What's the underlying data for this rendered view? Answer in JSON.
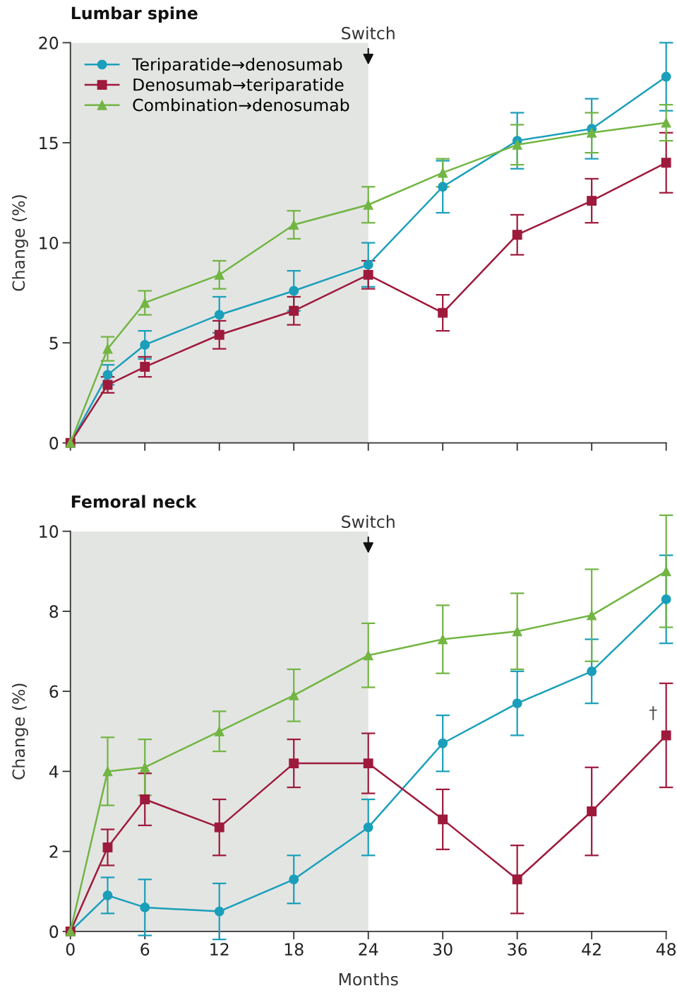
{
  "chart_data": [
    {
      "type": "line",
      "title": "Lumbar spine",
      "ylabel": "Change (%)",
      "x": [
        0,
        3,
        6,
        12,
        18,
        24,
        30,
        36,
        42,
        48
      ],
      "xlim": [
        0,
        48
      ],
      "xticks": [
        {
          "value": 0,
          "label": null
        },
        {
          "value": 6,
          "label": null
        },
        {
          "value": 12,
          "label": null
        },
        {
          "value": 18,
          "label": null
        },
        {
          "value": 24,
          "label": null
        },
        {
          "value": 30,
          "label": null
        },
        {
          "value": 36,
          "label": null
        },
        {
          "value": 42,
          "label": null
        },
        {
          "value": 48,
          "label": null
        }
      ],
      "ylim": [
        0,
        20
      ],
      "yticks": [
        0,
        5,
        10,
        15,
        20
      ],
      "tick_labels": "y",
      "legend": "top left",
      "grid": false,
      "line_style": "solid",
      "bands": [
        {
          "axis": "x",
          "from": 0,
          "to": 24,
          "color": "#e3e5e3"
        }
      ],
      "annotations": [
        "Switch"
      ],
      "series": [
        {
          "name": "Teriparatide→denosumab",
          "color": "#1a9fba",
          "marker": "circle",
          "values": [
            0,
            3.4,
            4.9,
            6.4,
            7.6,
            8.9,
            12.8,
            15.1,
            15.7,
            18.3
          ],
          "errors": [
            null,
            0.5,
            0.7,
            0.9,
            1.0,
            1.1,
            1.3,
            1.4,
            1.5,
            1.7
          ]
        },
        {
          "name": "Denosumab→teriparatide",
          "color": "#9e1a3c",
          "marker": "square",
          "values": [
            0,
            2.9,
            3.8,
            5.4,
            6.6,
            8.4,
            6.5,
            10.4,
            12.1,
            14.0
          ],
          "errors": [
            null,
            0.4,
            0.5,
            0.7,
            0.7,
            0.7,
            0.9,
            1.0,
            1.1,
            1.5
          ]
        },
        {
          "name": "Combination→denosumab",
          "color": "#72b543",
          "marker": "triangle",
          "values": [
            0,
            4.7,
            7.0,
            8.4,
            10.9,
            11.9,
            13.5,
            14.9,
            15.5,
            16.0
          ],
          "errors": [
            null,
            0.6,
            0.6,
            0.7,
            0.7,
            0.9,
            0.7,
            1.0,
            1.0,
            0.9
          ]
        }
      ]
    },
    {
      "type": "line",
      "title": "Femoral neck",
      "ylabel": "Change (%)",
      "xlabel": "Months",
      "x": [
        0,
        3,
        6,
        12,
        18,
        24,
        30,
        36,
        42,
        48
      ],
      "xlim": [
        0,
        48
      ],
      "xticks": [
        0,
        6,
        12,
        18,
        24,
        30,
        36,
        42,
        48
      ],
      "ylim": [
        0,
        10
      ],
      "yticks": [
        0,
        2,
        4,
        6,
        8,
        10
      ],
      "grid": false,
      "line_style": "solid",
      "bands": [
        {
          "axis": "x",
          "from": 0,
          "to": 24,
          "color": "#e3e5e3"
        }
      ],
      "annotations": [
        "Switch"
      ],
      "series": [
        {
          "color": "#1a9fba",
          "marker": "circle",
          "values": [
            0,
            0.9,
            0.6,
            0.5,
            1.3,
            2.6,
            4.7,
            5.7,
            6.5,
            8.3
          ],
          "errors": [
            null,
            0.45,
            0.7,
            0.7,
            0.6,
            0.7,
            0.7,
            0.8,
            0.8,
            1.1
          ]
        },
        {
          "color": "#9e1a3c",
          "marker": "square",
          "values": [
            0,
            2.1,
            3.3,
            2.6,
            4.2,
            4.2,
            2.8,
            1.3,
            3.0,
            4.9
          ],
          "value_labels": [
            null,
            null,
            null,
            null,
            null,
            null,
            null,
            null,
            null,
            "†"
          ],
          "errors": [
            null,
            0.45,
            0.65,
            0.7,
            0.6,
            0.75,
            0.75,
            0.85,
            1.1,
            1.3
          ]
        },
        {
          "color": "#72b543",
          "marker": "triangle",
          "values": [
            0,
            4.0,
            4.1,
            5.0,
            5.9,
            6.9,
            7.3,
            7.5,
            7.9,
            9.0
          ],
          "errors": [
            null,
            0.85,
            0.7,
            0.5,
            0.65,
            0.8,
            0.85,
            0.95,
            1.15,
            1.4
          ]
        }
      ]
    }
  ]
}
